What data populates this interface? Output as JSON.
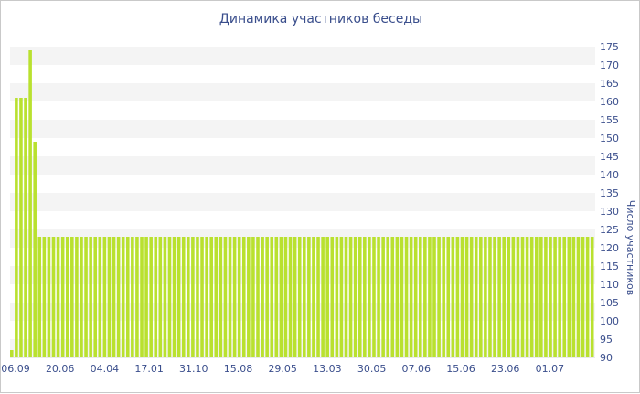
{
  "chart_data": {
    "type": "bar",
    "title": "Динамика участников беседы",
    "ylabel": "Число участников",
    "xlabel": "",
    "ylim": [
      90,
      175
    ],
    "y_ticks": [
      "90",
      "95",
      "100",
      "105",
      "110",
      "115",
      "120",
      "125",
      "130",
      "135",
      "140",
      "145",
      "150",
      "155",
      "160",
      "165",
      "170",
      "175"
    ],
    "x_tick_labels": [
      "06.09",
      "20.06",
      "04.04",
      "17.01",
      "31.10",
      "15.08",
      "29.05",
      "13.03",
      "30.05",
      "07.06",
      "15.06",
      "23.06",
      "01.07"
    ],
    "grid": "alternating horizontal bands",
    "color": "#b9e12f",
    "values": [
      92,
      161,
      161,
      161,
      174,
      149,
      123,
      123,
      123,
      123,
      123,
      123,
      123,
      123,
      123,
      123,
      123,
      123,
      123,
      123,
      123,
      123,
      123,
      123,
      123,
      123,
      123,
      123,
      123,
      123,
      123,
      123,
      123,
      123,
      123,
      123,
      123,
      123,
      123,
      123,
      123,
      123,
      123,
      123,
      123,
      123,
      123,
      123,
      123,
      123,
      123,
      123,
      123,
      123,
      123,
      123,
      123,
      123,
      123,
      123,
      123,
      123,
      123,
      123,
      123,
      123,
      123,
      123,
      123,
      123,
      123,
      123,
      123,
      123,
      123,
      123,
      123,
      123,
      123,
      123,
      123,
      123,
      123,
      123,
      123,
      123,
      123,
      123,
      123,
      123,
      123,
      123,
      123,
      123,
      123,
      123,
      123,
      123,
      123,
      123,
      123,
      123,
      123,
      123,
      123,
      123,
      123,
      123,
      123,
      123,
      123,
      123,
      123,
      123,
      123,
      123,
      123,
      123,
      123,
      123,
      123,
      123,
      123,
      123,
      123,
      123
    ]
  }
}
